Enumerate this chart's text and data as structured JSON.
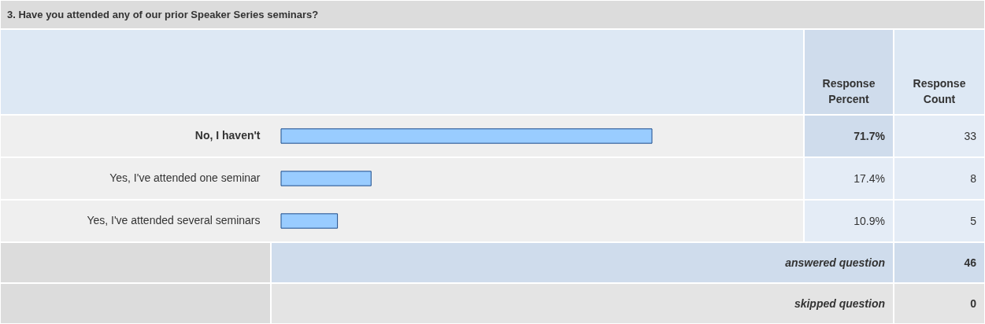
{
  "chart_data": {
    "type": "bar",
    "orientation": "horizontal",
    "title": "3. Have you attended any of our prior Speaker Series seminars?",
    "categories": [
      "No, I haven't",
      "Yes, I've attended one seminar",
      "Yes, I've attended several seminars"
    ],
    "values": [
      71.7,
      17.4,
      10.9
    ],
    "value_labels": [
      "71.7%",
      "17.4%",
      "10.9%"
    ],
    "color": "#99ccff",
    "tick_labels": "y",
    "annotations": [
      "Response Percent",
      "Response Count",
      "33",
      "8",
      "5",
      "answered question",
      "46",
      "skipped question",
      "0"
    ]
  }
}
